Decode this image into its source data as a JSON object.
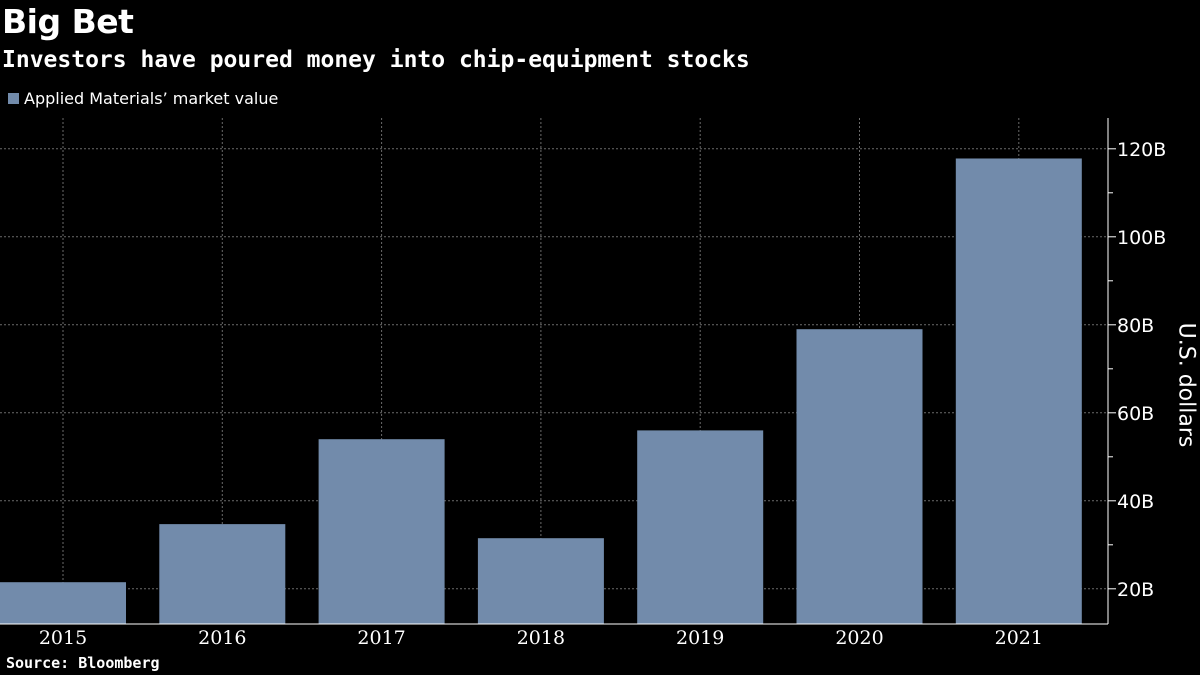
{
  "header": {
    "title": "Big Bet",
    "subtitle": "Investors have poured money into chip-equipment stocks"
  },
  "footer": {
    "source": "Source: Bloomberg"
  },
  "colors": {
    "bar": "#728bab",
    "background": "#000000",
    "grid": "#6a6a6a",
    "text": "#ffffff"
  },
  "chart_data": {
    "type": "bar",
    "categories": [
      "2015",
      "2016",
      "2017",
      "2018",
      "2019",
      "2020",
      "2021"
    ],
    "series": [
      {
        "name": "Applied Materials’ market value",
        "values": [
          21.5,
          34.7,
          54.0,
          31.5,
          56.0,
          79.0,
          117.8
        ]
      }
    ],
    "title": "Big Bet",
    "subtitle": "Investors have poured money into chip-equipment stocks",
    "xlabel": "",
    "ylabel": "U.S. dollars",
    "ylim": [
      12,
      127
    ],
    "yticks": [
      20,
      40,
      60,
      80,
      100,
      120
    ],
    "ytick_labels": [
      "20B",
      "40B",
      "60B",
      "80B",
      "100B",
      "120B"
    ],
    "y_axis_side": "right",
    "grid": true,
    "legend": "top-left"
  }
}
